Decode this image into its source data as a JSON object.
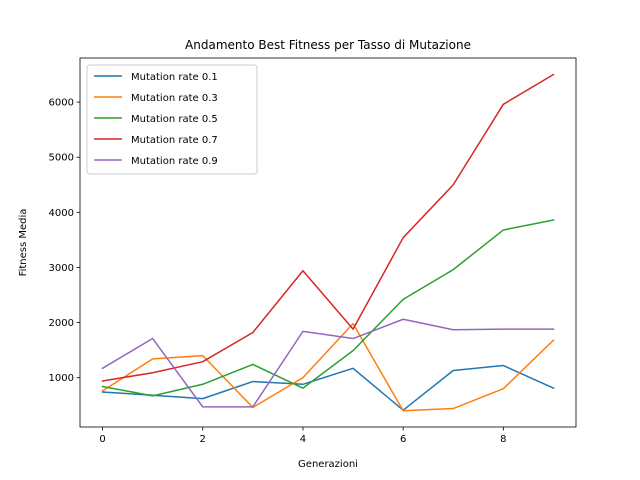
{
  "chart_data": {
    "type": "line",
    "title": "Andamento Best Fitness per Tasso di Mutazione",
    "xlabel": "Generazioni",
    "ylabel": "Fitness Media",
    "x": [
      0,
      1,
      2,
      3,
      4,
      5,
      6,
      7,
      8,
      9
    ],
    "xlim": [
      -0.45,
      9.45
    ],
    "ylim": [
      105,
      6800
    ],
    "xticks": [
      0,
      2,
      4,
      6,
      8
    ],
    "yticks": [
      1000,
      2000,
      3000,
      4000,
      5000,
      6000
    ],
    "grid": false,
    "legend_position": "top-left",
    "series": [
      {
        "name": "Mutation rate 0.1",
        "color": "#1f77b4",
        "values": [
          740,
          680,
          620,
          930,
          880,
          1170,
          410,
          1130,
          1220,
          810
        ]
      },
      {
        "name": "Mutation rate 0.3",
        "color": "#ff7f0e",
        "values": [
          760,
          1340,
          1400,
          460,
          1000,
          1980,
          400,
          440,
          800,
          1680
        ]
      },
      {
        "name": "Mutation rate 0.5",
        "color": "#2ca02c",
        "values": [
          840,
          670,
          880,
          1240,
          810,
          1490,
          2420,
          2960,
          3680,
          3860
        ]
      },
      {
        "name": "Mutation rate 0.7",
        "color": "#d62728",
        "values": [
          940,
          1090,
          1290,
          1820,
          2940,
          1880,
          3540,
          4500,
          5960,
          6500
        ]
      },
      {
        "name": "Mutation rate 0.9",
        "color": "#9467bd",
        "values": [
          1170,
          1710,
          470,
          470,
          1840,
          1710,
          2060,
          1870,
          1880,
          1880
        ]
      }
    ]
  }
}
